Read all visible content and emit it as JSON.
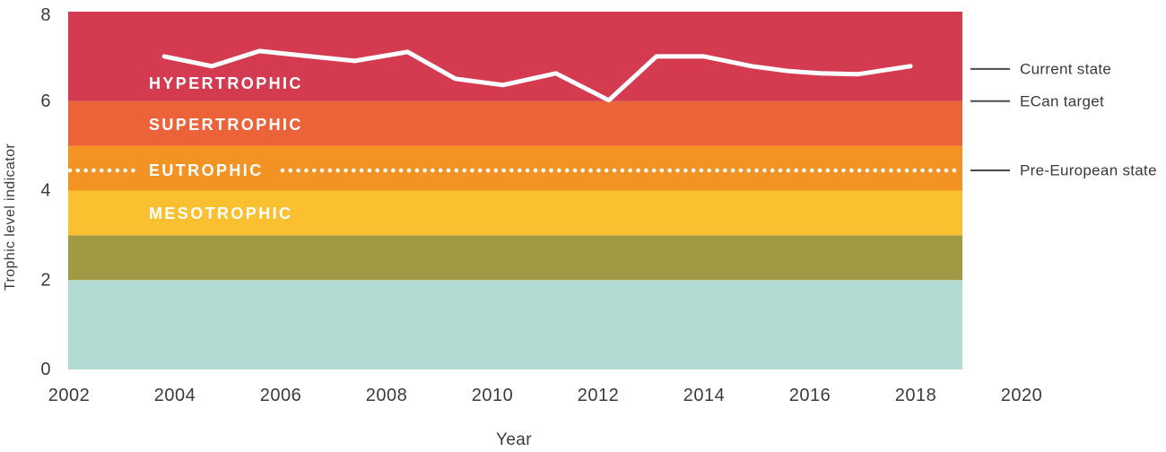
{
  "chart_data": {
    "type": "line",
    "title": "",
    "xlabel": "Year",
    "ylabel": "Trophic level indicator",
    "xlim": [
      2002,
      2020
    ],
    "ylim": [
      0,
      8
    ],
    "x_ticks": [
      2002,
      2004,
      2006,
      2008,
      2010,
      2012,
      2014,
      2016,
      2018,
      2020
    ],
    "y_ticks": [
      0,
      2,
      4,
      6,
      8
    ],
    "grid": false,
    "legend_position": "right-annotations",
    "band_year_span": [
      2002,
      2019
    ],
    "bands": [
      {
        "label": "",
        "from": 0,
        "to": 2,
        "color": "#B2DBD3",
        "label_at": null
      },
      {
        "label": "",
        "from": 2,
        "to": 3,
        "color": "#A09A45",
        "label_at": null
      },
      {
        "label": "MESOTROPHIC",
        "from": 3,
        "to": 4,
        "color": "#FBC02F",
        "label_at": 3.49
      },
      {
        "label": "EUTROPHIC",
        "from": 4,
        "to": 5,
        "color": "#F39324",
        "label_at": 4.45
      },
      {
        "label": "SUPERTROPHIC",
        "from": 5,
        "to": 6,
        "color": "#EC6239",
        "label_at": 5.47
      },
      {
        "label": "HYPERTROPHIC",
        "from": 6,
        "to": 8,
        "color": "#D43A50",
        "label_at": 6.4
      }
    ],
    "series": [
      {
        "name": "Current state",
        "style": "solid",
        "color": "#FFFFFF",
        "points": [
          [
            2003.8,
            7.0
          ],
          [
            2004.7,
            6.78
          ],
          [
            2005.6,
            7.12
          ],
          [
            2006.4,
            7.02
          ],
          [
            2007.4,
            6.9
          ],
          [
            2008.4,
            7.1
          ],
          [
            2009.3,
            6.5
          ],
          [
            2010.2,
            6.36
          ],
          [
            2011.2,
            6.62
          ],
          [
            2012.2,
            6.02
          ],
          [
            2013.1,
            7.0
          ],
          [
            2014.0,
            7.0
          ],
          [
            2014.9,
            6.78
          ],
          [
            2015.6,
            6.67
          ],
          [
            2016.2,
            6.62
          ],
          [
            2016.9,
            6.6
          ],
          [
            2017.9,
            6.78
          ]
        ]
      },
      {
        "name": "Pre-European state",
        "style": "dotted",
        "color": "#FFFFFF",
        "value": 4.45
      }
    ],
    "annotations": [
      {
        "label": "Current state",
        "value": 6.72
      },
      {
        "label": "ECan target",
        "value": 6.0
      },
      {
        "label": "Pre-European state",
        "value": 4.45
      }
    ]
  },
  "colors": {
    "background": "#FFFFFF",
    "text": "#3B3B3B",
    "leader_line": "#4A4A4A",
    "band_label": "#FFFFFF"
  }
}
